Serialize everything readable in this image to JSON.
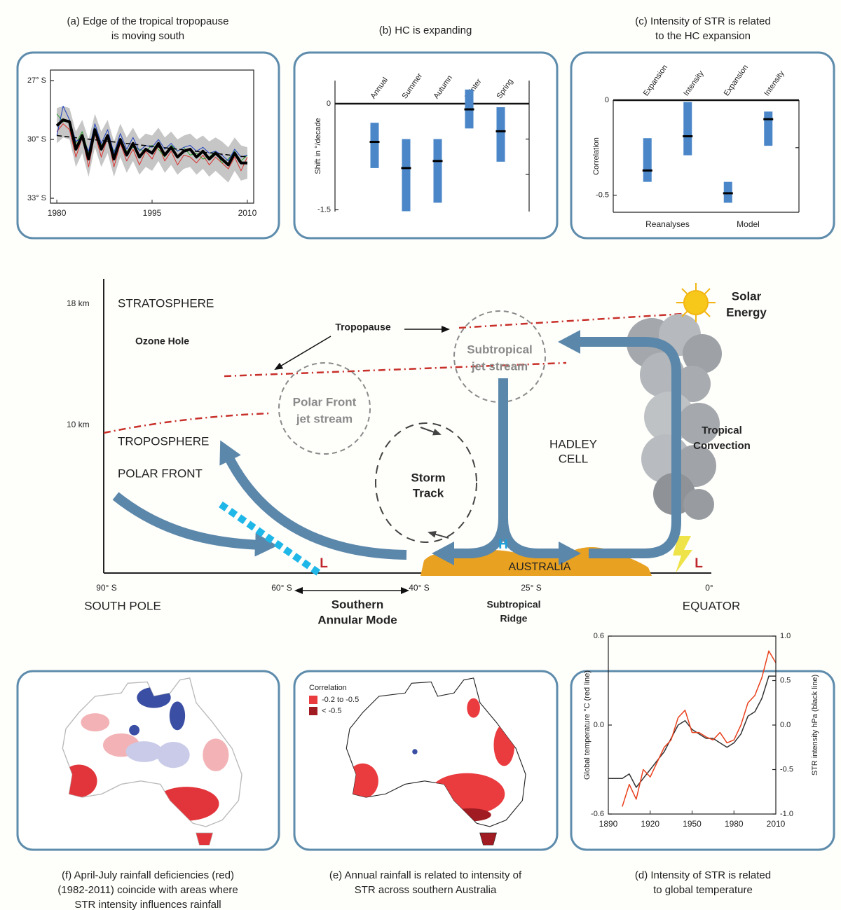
{
  "chart_data": [
    {
      "type": "line",
      "title": [
        "(a) Edge of the tropical tropopause",
        "is moving south"
      ],
      "x": [
        1980,
        1981,
        1982,
        1983,
        1984,
        1985,
        1986,
        1987,
        1988,
        1989,
        1990,
        1991,
        1992,
        1993,
        1994,
        1995,
        1996,
        1997,
        1998,
        1999,
        2000,
        2001,
        2002,
        2003,
        2004,
        2005,
        2006,
        2007,
        2008,
        2009,
        2010
      ],
      "xlim": [
        1979,
        2011
      ],
      "xticks": [
        1980,
        1995,
        2010
      ],
      "ylim": [
        33.25,
        26.46
      ],
      "yticks": [
        {
          "value": 27,
          "label": "27° S"
        },
        {
          "value": 30,
          "label": "30° S"
        },
        {
          "value": 33,
          "label": "33° S"
        }
      ],
      "band": {
        "color": "#c6c6c6",
        "low": [
          28.4,
          28.3,
          28.4,
          29.6,
          29.0,
          30.0,
          28.7,
          29.6,
          29.0,
          30.1,
          29.2,
          29.9,
          29.4,
          30.0,
          29.7,
          29.8,
          29.4,
          29.9,
          29.6,
          30.0,
          29.8,
          29.7,
          30.0,
          29.8,
          30.1,
          29.9,
          30.1,
          30.4,
          29.9,
          30.3,
          30.4
        ],
        "high": [
          30.2,
          29.9,
          30.0,
          31.4,
          30.7,
          31.9,
          30.4,
          31.4,
          30.7,
          31.9,
          30.9,
          31.7,
          31.1,
          31.8,
          31.4,
          31.6,
          31.1,
          31.7,
          31.3,
          31.8,
          31.5,
          31.4,
          31.8,
          31.5,
          31.9,
          31.6,
          31.9,
          32.2,
          31.6,
          32.1,
          32.0
        ]
      },
      "series": [
        {
          "color": "#d9302b",
          "linewidth": 1,
          "values": [
            29.6,
            29.2,
            29.5,
            30.9,
            29.9,
            31.4,
            29.7,
            30.9,
            29.9,
            31.4,
            30.2,
            31.1,
            30.5,
            31.3,
            30.6,
            31.0,
            30.3,
            31.1,
            30.6,
            31.3,
            30.8,
            30.9,
            31.2,
            30.8,
            31.3,
            30.9,
            31.2,
            31.5,
            30.9,
            31.6,
            30.9
          ]
        },
        {
          "color": "#2ca02c",
          "linewidth": 1,
          "values": [
            28.7,
            29.1,
            29.0,
            30.2,
            29.6,
            30.7,
            29.4,
            30.3,
            29.9,
            30.6,
            30.1,
            30.6,
            30.4,
            30.5,
            30.6,
            30.3,
            30.5,
            30.9,
            30.3,
            30.6,
            30.4,
            30.8,
            30.7,
            31.0,
            30.9,
            30.6,
            31.2,
            31.0,
            30.6,
            31.1,
            30.8
          ]
        },
        {
          "color": "#1f3fbf",
          "linewidth": 1,
          "values": [
            29.8,
            28.3,
            29.0,
            30.1,
            29.9,
            30.6,
            29.2,
            30.2,
            29.5,
            30.7,
            29.7,
            30.5,
            29.9,
            30.6,
            30.3,
            30.4,
            30.0,
            30.5,
            30.2,
            30.6,
            30.4,
            30.3,
            30.6,
            30.4,
            30.7,
            30.6,
            30.8,
            31.1,
            30.5,
            30.9,
            30.8
          ]
        },
        {
          "color": "#000000",
          "linewidth": 4,
          "values": [
            29.3,
            29.0,
            29.1,
            30.5,
            29.8,
            31.0,
            29.5,
            30.5,
            29.8,
            31.0,
            30.0,
            30.8,
            30.2,
            30.9,
            30.5,
            30.7,
            30.2,
            30.8,
            30.4,
            30.9,
            30.6,
            30.5,
            30.9,
            30.6,
            31.0,
            30.7,
            31.0,
            31.3,
            30.7,
            31.2,
            31.2
          ]
        },
        {
          "color": "#000000",
          "linewidth": 1.5,
          "dash": true,
          "x": [
            1980,
            2010
          ],
          "values": [
            29.8,
            30.9
          ]
        }
      ]
    },
    {
      "type": "range",
      "title": [
        "(b) HC is expanding"
      ],
      "categories": [
        "Annual",
        "Summer",
        "Autumn",
        "Winter",
        "Spring"
      ],
      "values": [
        -0.54,
        -0.91,
        -0.81,
        -0.08,
        -0.39
      ],
      "low": [
        -0.91,
        -1.52,
        -1.4,
        -0.35,
        -0.82
      ],
      "high": [
        -0.27,
        -0.5,
        -0.5,
        0.2,
        -0.05
      ],
      "color": "#4a86c8",
      "ylabel": "Shift in °/decade",
      "ylim": [
        -1.525,
        0.327
      ],
      "yticks": [
        -1.5,
        0
      ],
      "minor_yticks": [
        -1,
        -0.5
      ]
    },
    {
      "type": "range",
      "title": [
        "(c) Intensity of STR is related",
        "to the HC expansion"
      ],
      "categories": [
        "Expansion",
        "Intensity",
        "Expansion",
        "Intensity"
      ],
      "groups": [
        "Reanalyses",
        "Model"
      ],
      "values": [
        -0.37,
        -0.19,
        -0.49,
        -0.1
      ],
      "low": [
        -0.43,
        -0.29,
        -0.54,
        -0.24
      ],
      "high": [
        -0.2,
        -0.01,
        -0.43,
        -0.06
      ],
      "color": "#4a86c8",
      "ylabel": "Correlation",
      "ylim": [
        -0.59,
        0
      ],
      "yticks": [
        -0.5,
        0
      ],
      "minor_yticks": [
        -0.25
      ]
    },
    {
      "type": "line",
      "title": [
        "(d) Intensity of STR is related",
        "to global temperature"
      ],
      "x": [
        1890,
        1895,
        1900,
        1905,
        1910,
        1915,
        1920,
        1925,
        1930,
        1935,
        1940,
        1945,
        1950,
        1955,
        1960,
        1965,
        1970,
        1975,
        1980,
        1985,
        1990,
        1995,
        2000,
        2005,
        2010
      ],
      "xlim": [
        1890,
        2010
      ],
      "xticks": [
        1890,
        1920,
        1950,
        1980,
        2010
      ],
      "ylim": [
        -0.6,
        0.6
      ],
      "yticks": [
        -0.6,
        {
          "value": 0,
          "label": "0.0"
        },
        0.6
      ],
      "y2lim": [
        -1,
        1
      ],
      "y2ticks": [
        {
          "value": -1,
          "label": "-1.0"
        },
        -0.5,
        {
          "value": 0,
          "label": "0.0"
        },
        0.5,
        {
          "value": 1,
          "label": "1.0"
        }
      ],
      "ylabel": "Global temperature °C (red line)",
      "y2label": "STR intensity hPa (black line)",
      "series": [
        {
          "color": "#333333",
          "axis": "y2",
          "linewidth": 1.5,
          "values": [
            -0.6,
            -0.6,
            -0.6,
            -0.55,
            -0.7,
            -0.6,
            -0.5,
            -0.4,
            -0.3,
            -0.15,
            0.0,
            0.05,
            -0.05,
            -0.1,
            -0.15,
            -0.15,
            -0.2,
            -0.25,
            -0.2,
            -0.1,
            0.1,
            0.15,
            0.3,
            0.55,
            0.55
          ]
        },
        {
          "color": "#e8401c",
          "linewidth": 1.5,
          "values": [
            null,
            null,
            -0.55,
            -0.4,
            -0.5,
            -0.3,
            -0.35,
            -0.25,
            -0.15,
            -0.1,
            0.05,
            0.1,
            -0.05,
            -0.05,
            -0.08,
            -0.1,
            -0.05,
            -0.12,
            -0.1,
            0.0,
            0.15,
            0.2,
            0.32,
            0.5,
            0.42
          ]
        }
      ]
    }
  ],
  "maps": [
    {
      "caption": [
        "(f) April-July rainfall deficiencies (red)",
        "(1982-2011) coincide with areas where",
        "STR intensity influences rainfall"
      ]
    },
    {
      "caption": [
        "(e) Annual rainfall is related to intensity of",
        "STR across southern Australia"
      ],
      "legend_title": "Correlation",
      "legend": [
        {
          "label": "-0.2 to -0.5",
          "color": "#ea3b3f"
        },
        {
          "label": "< -0.5",
          "color": "#a01c22"
        }
      ]
    }
  ],
  "diagram": {
    "altitudes": [
      "18 km",
      "10 km"
    ],
    "stratosphere": "STRATOSPHERE",
    "ozone_hole": "Ozone Hole",
    "tropopause": "Tropopause",
    "subtropical_jet": [
      "Subtropical",
      "jet stream"
    ],
    "polar_front_jet": [
      "Polar Front",
      "jet stream"
    ],
    "solar_energy": [
      "Solar",
      "Energy"
    ],
    "troposphere": "TROPOSPHERE",
    "polar_front": "POLAR FRONT",
    "storm_track": [
      "Storm",
      "Track"
    ],
    "hadley_cell": [
      "HADLEY",
      "CELL"
    ],
    "tropical_convection": [
      "Tropical",
      "Convection"
    ],
    "high": "H",
    "australia": "AUSTRALIA",
    "lows": [
      "L",
      "L"
    ],
    "latitudes": [
      "90° S",
      "60° S",
      "40° S",
      "25° S",
      "0°"
    ],
    "regions": [
      "SOUTH POLE",
      "EQUATOR"
    ],
    "southern_annular_mode": [
      "Southern",
      "Annular Mode"
    ],
    "subtropical_ridge": [
      "Subtropical",
      "Ridge"
    ]
  }
}
